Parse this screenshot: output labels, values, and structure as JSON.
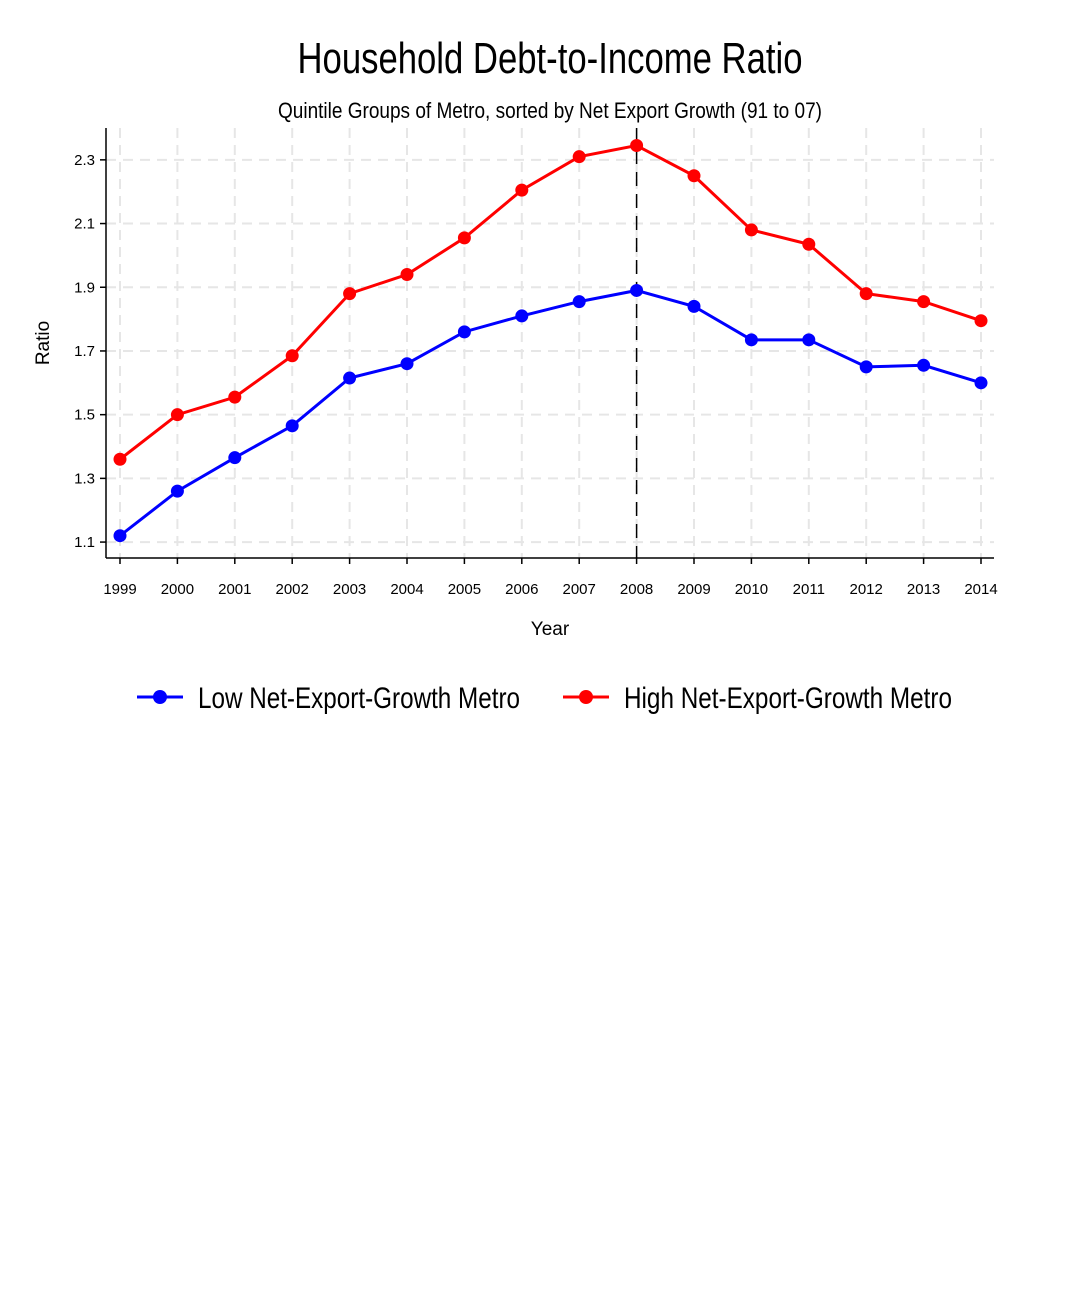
{
  "chart_data": {
    "type": "line",
    "title": "Household Debt-to-Income Ratio",
    "subtitle": "Quintile Groups of Metro, sorted by Net Export Growth (91 to 07)",
    "xlabel": "Year",
    "ylabel": "Ratio",
    "x": [
      1999,
      2000,
      2001,
      2002,
      2003,
      2004,
      2005,
      2006,
      2007,
      2008,
      2009,
      2010,
      2011,
      2012,
      2013,
      2014
    ],
    "xlim": [
      1999,
      2014
    ],
    "ylim": [
      1.05,
      2.4
    ],
    "yticks": [
      1.1,
      1.3,
      1.5,
      1.7,
      1.9,
      2.1,
      2.3
    ],
    "ytick_labels": [
      "1.1",
      "1.3",
      "1.5",
      "1.7",
      "1.9",
      "2.1",
      "2.3"
    ],
    "xtick_labels": [
      "1999",
      "2000",
      "2001",
      "2002",
      "2003",
      "2004",
      "2005",
      "2006",
      "2007",
      "2008",
      "2009",
      "2010",
      "2011",
      "2012",
      "2013",
      "2014"
    ],
    "grid": true,
    "reference_line_x": 2008,
    "legend_position": "bottom",
    "series": [
      {
        "name": "Low Net-Export-Growth Metro",
        "color": "#0000ff",
        "values": [
          1.12,
          1.26,
          1.365,
          1.465,
          1.615,
          1.66,
          1.76,
          1.81,
          1.855,
          1.89,
          1.84,
          1.735,
          1.735,
          1.65,
          1.655,
          1.6
        ]
      },
      {
        "name": "High Net-Export-Growth Metro",
        "color": "#ff0000",
        "values": [
          1.36,
          1.5,
          1.555,
          1.685,
          1.88,
          1.94,
          2.055,
          2.205,
          2.31,
          2.345,
          2.25,
          2.08,
          2.035,
          1.88,
          1.855,
          1.795
        ]
      }
    ]
  }
}
